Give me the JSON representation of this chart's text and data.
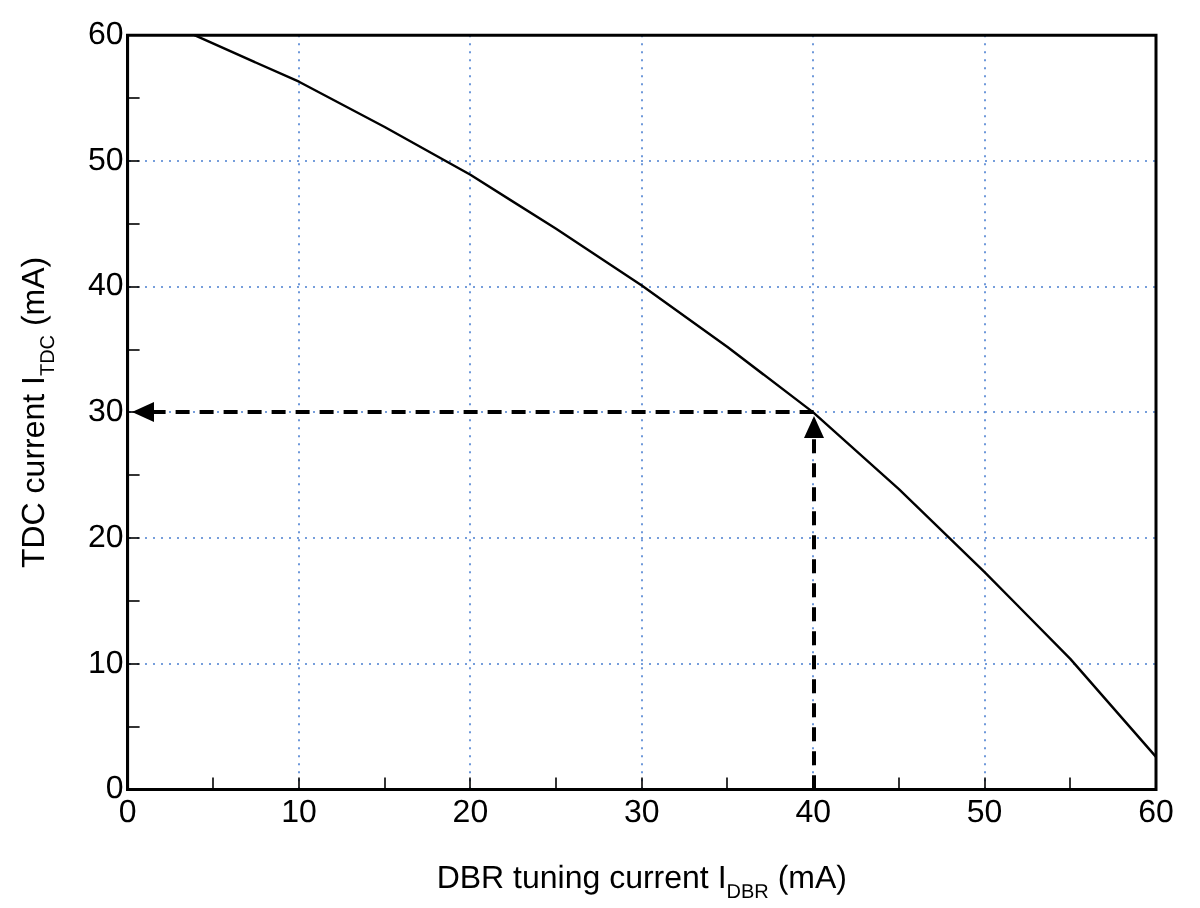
{
  "chart_data": {
    "type": "line",
    "xlabel": "DBR tuning current I$_{DBR}$ (mA)",
    "ylabel": "TDC current I$_{TDC}$ (mA)",
    "xlim": [
      0,
      60
    ],
    "ylim": [
      0,
      60
    ],
    "xticks": [
      0,
      {
        "value": 5,
        "label": null
      },
      10,
      {
        "value": 15,
        "label": null
      },
      20,
      {
        "value": 25,
        "label": null
      },
      30,
      {
        "value": 35,
        "label": null
      },
      40,
      {
        "value": 45,
        "label": null
      },
      50,
      {
        "value": 55,
        "label": null
      },
      60
    ],
    "yticks": [
      0,
      {
        "value": 5,
        "label": null
      },
      10,
      {
        "value": 15,
        "label": null
      },
      20,
      {
        "value": 25,
        "label": null
      },
      30,
      {
        "value": 35,
        "label": null
      },
      40,
      {
        "value": 45,
        "label": null
      },
      50,
      {
        "value": 55,
        "label": null
      },
      60
    ],
    "grid": true,
    "legend": false,
    "marker": "none",
    "series": [
      {
        "color": "#000000",
        "x": [
          3.9,
          10,
          15,
          20,
          25,
          30,
          35,
          40,
          45,
          50,
          55,
          60
        ],
        "values": [
          60,
          56.3,
          52.7,
          48.9,
          44.6,
          40.1,
          35.2,
          30.0,
          23.9,
          17.3,
          10.4,
          2.6
        ]
      }
    ]
  }
}
